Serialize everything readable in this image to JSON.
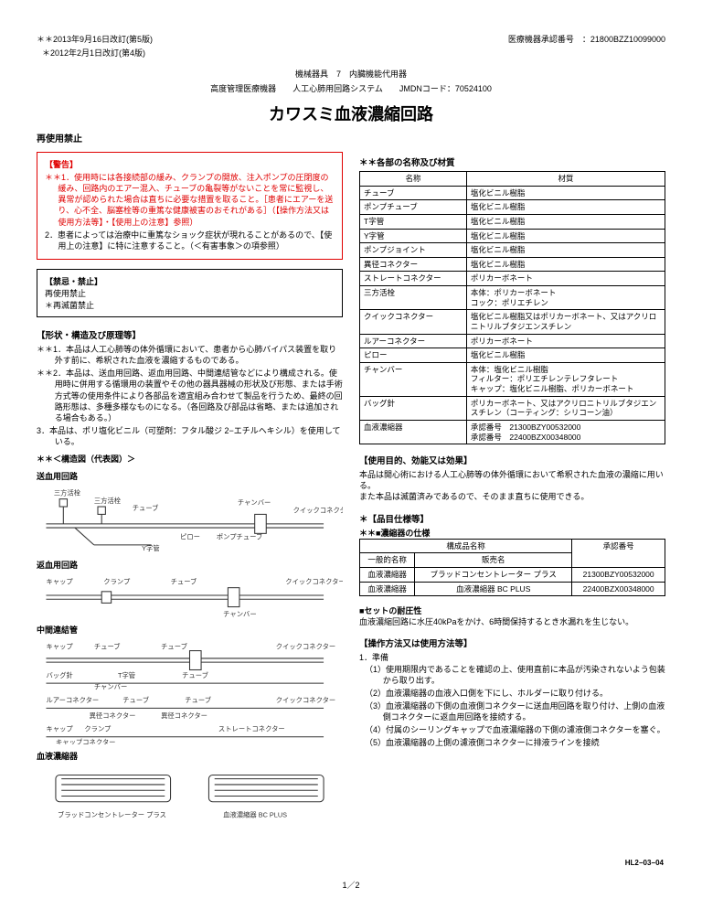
{
  "header": {
    "revision1": "＊＊2013年9月16日改訂(第5版)",
    "revision2": "＊2012年2月1日改訂(第4版)",
    "approval_label": "医療機器承認番号　：",
    "approval_number": "21800BZZ10099000",
    "device_class1": "機械器具　7　内臓機能代用器",
    "device_class2": "高度管理医療機器　　人工心肺用回路システム　　JMDNコード：70524100",
    "title": "カワスミ血液濃縮回路",
    "reuse": "再使用禁止"
  },
  "warning": {
    "head": "【警告】",
    "item1": "＊＊1．使用時には各接続部の緩み、クランプの開放、注入ポンプの圧閉度の緩み、回路内のエアー混入、チューブの亀裂等がないことを常に監視し、異常が認められた場合は直ちに必要な措置を取ること。［患者にエアーを送り、心不全、脳塞栓等の重篤な健康被害のおそれがある］（【操作方法又は使用方法等】・【使用上の注意】参照）",
    "item2": "2．患者によっては治療中に重篤なショック症状が現れることがあるので、【使用上の注意】に特に注意すること。（＜有害事象＞の項参照）"
  },
  "caution": {
    "head": "【禁忌・禁止】",
    "line1": "再使用禁止",
    "line2": "＊再滅菌禁止"
  },
  "shape": {
    "head": "【形状・構造及び原理等】",
    "item1": "＊＊1．本品は人工心肺等の体外循環において、患者から心肺バイパス装置を取り外す前に、希釈された血液を濃縮するものである。",
    "item2": "＊＊2．本品は、送血用回路、返血用回路、中間連結管などにより構成される。使用時に併用する循環用の装置やその他の器具器械の形状及び形態、または手術方式等の使用条件により各部品を適宜組み合わせて製品を行うため、最終の回路形態は、多種多様なものになる。（各回路及び部品は省略、または追加される場合もある。）",
    "item3": "3．本品は、ポリ塩化ビニル（可塑剤：フタル酸ジ 2−エチルヘキシル）を使用している。",
    "diagram_head": "＊＊＜構造図（代表図）＞",
    "sub1": "送血用回路",
    "sub2": "返血用回路",
    "sub3": "中間連結管",
    "sub4": "血液濃縮器",
    "dev1": "ブラッドコンセントレーター プラス",
    "dev2": "血液濃縮器 BC PLUS"
  },
  "parts": {
    "head": "＊＊各部の名称及び材質",
    "col1": "名称",
    "col2": "材質",
    "rows": [
      [
        "チューブ",
        "塩化ビニル樹脂"
      ],
      [
        "ポンプチューブ",
        "塩化ビニル樹脂"
      ],
      [
        "T字管",
        "塩化ビニル樹脂"
      ],
      [
        "Y字管",
        "塩化ビニル樹脂"
      ],
      [
        "ポンプジョイント",
        "塩化ビニル樹脂"
      ],
      [
        "異径コネクター",
        "塩化ビニル樹脂"
      ],
      [
        "ストレートコネクター",
        "ポリカーボネート"
      ],
      [
        "三方活栓",
        "本体：ポリカーボネート\nコック：ポリエチレン"
      ],
      [
        "クイックコネクター",
        "塩化ビニル樹脂又はポリカーボネート、又はアクリロニトリルブタジエンスチレン"
      ],
      [
        "ルアーコネクター",
        "ポリカーボネート"
      ],
      [
        "ピロー",
        "塩化ビニル樹脂"
      ],
      [
        "チャンバー",
        "本体：塩化ビニル樹脂\nフィルター：ポリエチレンテレフタレート\nキャップ：塩化ビニル樹脂、ポリカーボネート"
      ],
      [
        "バッグ針",
        "ポリカーボネート、又はアクリロニトリルブタジエンスチレン（コーティング：シリコーン油）"
      ],
      [
        "血液濃縮器",
        "承認番号　21300BZY00532000\n承認番号　22400BZX00348000"
      ]
    ]
  },
  "purpose": {
    "head": "【使用目的、効能又は効果】",
    "text1": "本品は開心術における人工心肺等の体外循環において希釈された血液の濃縮に用いる。",
    "text2": "また本品は滅菌済みであるので、そのまま直ちに使用できる。"
  },
  "spec": {
    "head": "＊【品目仕様等】",
    "subhead": "＊＊■濃縮器の仕様",
    "h1": "構成品名称",
    "h2": "承認番号",
    "h1a": "一般的名称",
    "h1b": "販売名",
    "rows": [
      [
        "血液濃縮器",
        "ブラッドコンセントレーター プラス",
        "21300BZY00532000"
      ],
      [
        "血液濃縮器",
        "血液濃縮器 BC PLUS",
        "22400BZX00348000"
      ]
    ]
  },
  "pressure": {
    "head": "■セットの耐圧性",
    "text": "血液濃縮回路に水圧40kPaをかけ、6時間保持するとき水漏れを生じない。"
  },
  "operation": {
    "head": "【操作方法又は使用方法等】",
    "sub": "1．準備",
    "items": [
      "（1）使用期限内であることを確認の上、使用直前に本品が汚染されないよう包装から取り出す。",
      "（2）血液濃縮器の血液入口側を下にし、ホルダーに取り付ける。",
      "（3）血液濃縮器の下側の血液側コネクターに送血用回路を取り付け、上側の血液側コネクターに返血用回路を接続する。",
      "（4）付属のシーリングキャップで血液濃縮器の下側の濾液側コネクターを塞ぐ。",
      "（5）血液濃縮器の上側の濾液側コネクターに排液ラインを接続"
    ]
  },
  "footer": {
    "code": "HL2−03−04",
    "page": "1／2"
  },
  "diagram_labels": {
    "miway": "三方活栓",
    "miway2": "三方活栓",
    "tube": "チューブ",
    "chamber": "チャンバー",
    "quick": "クイックコネクター",
    "pillow": "ピロー",
    "pump": "ポンプチューブ",
    "ytube": "Y字管",
    "cap": "キャップ",
    "clamp": "クランプ",
    "ttube": "T字管",
    "bagn": "バッグ針",
    "luer": "ルアーコネクター",
    "diff": "異径コネクター",
    "straight": "ストレートコネクター",
    "capc": "キャップコネクター"
  }
}
